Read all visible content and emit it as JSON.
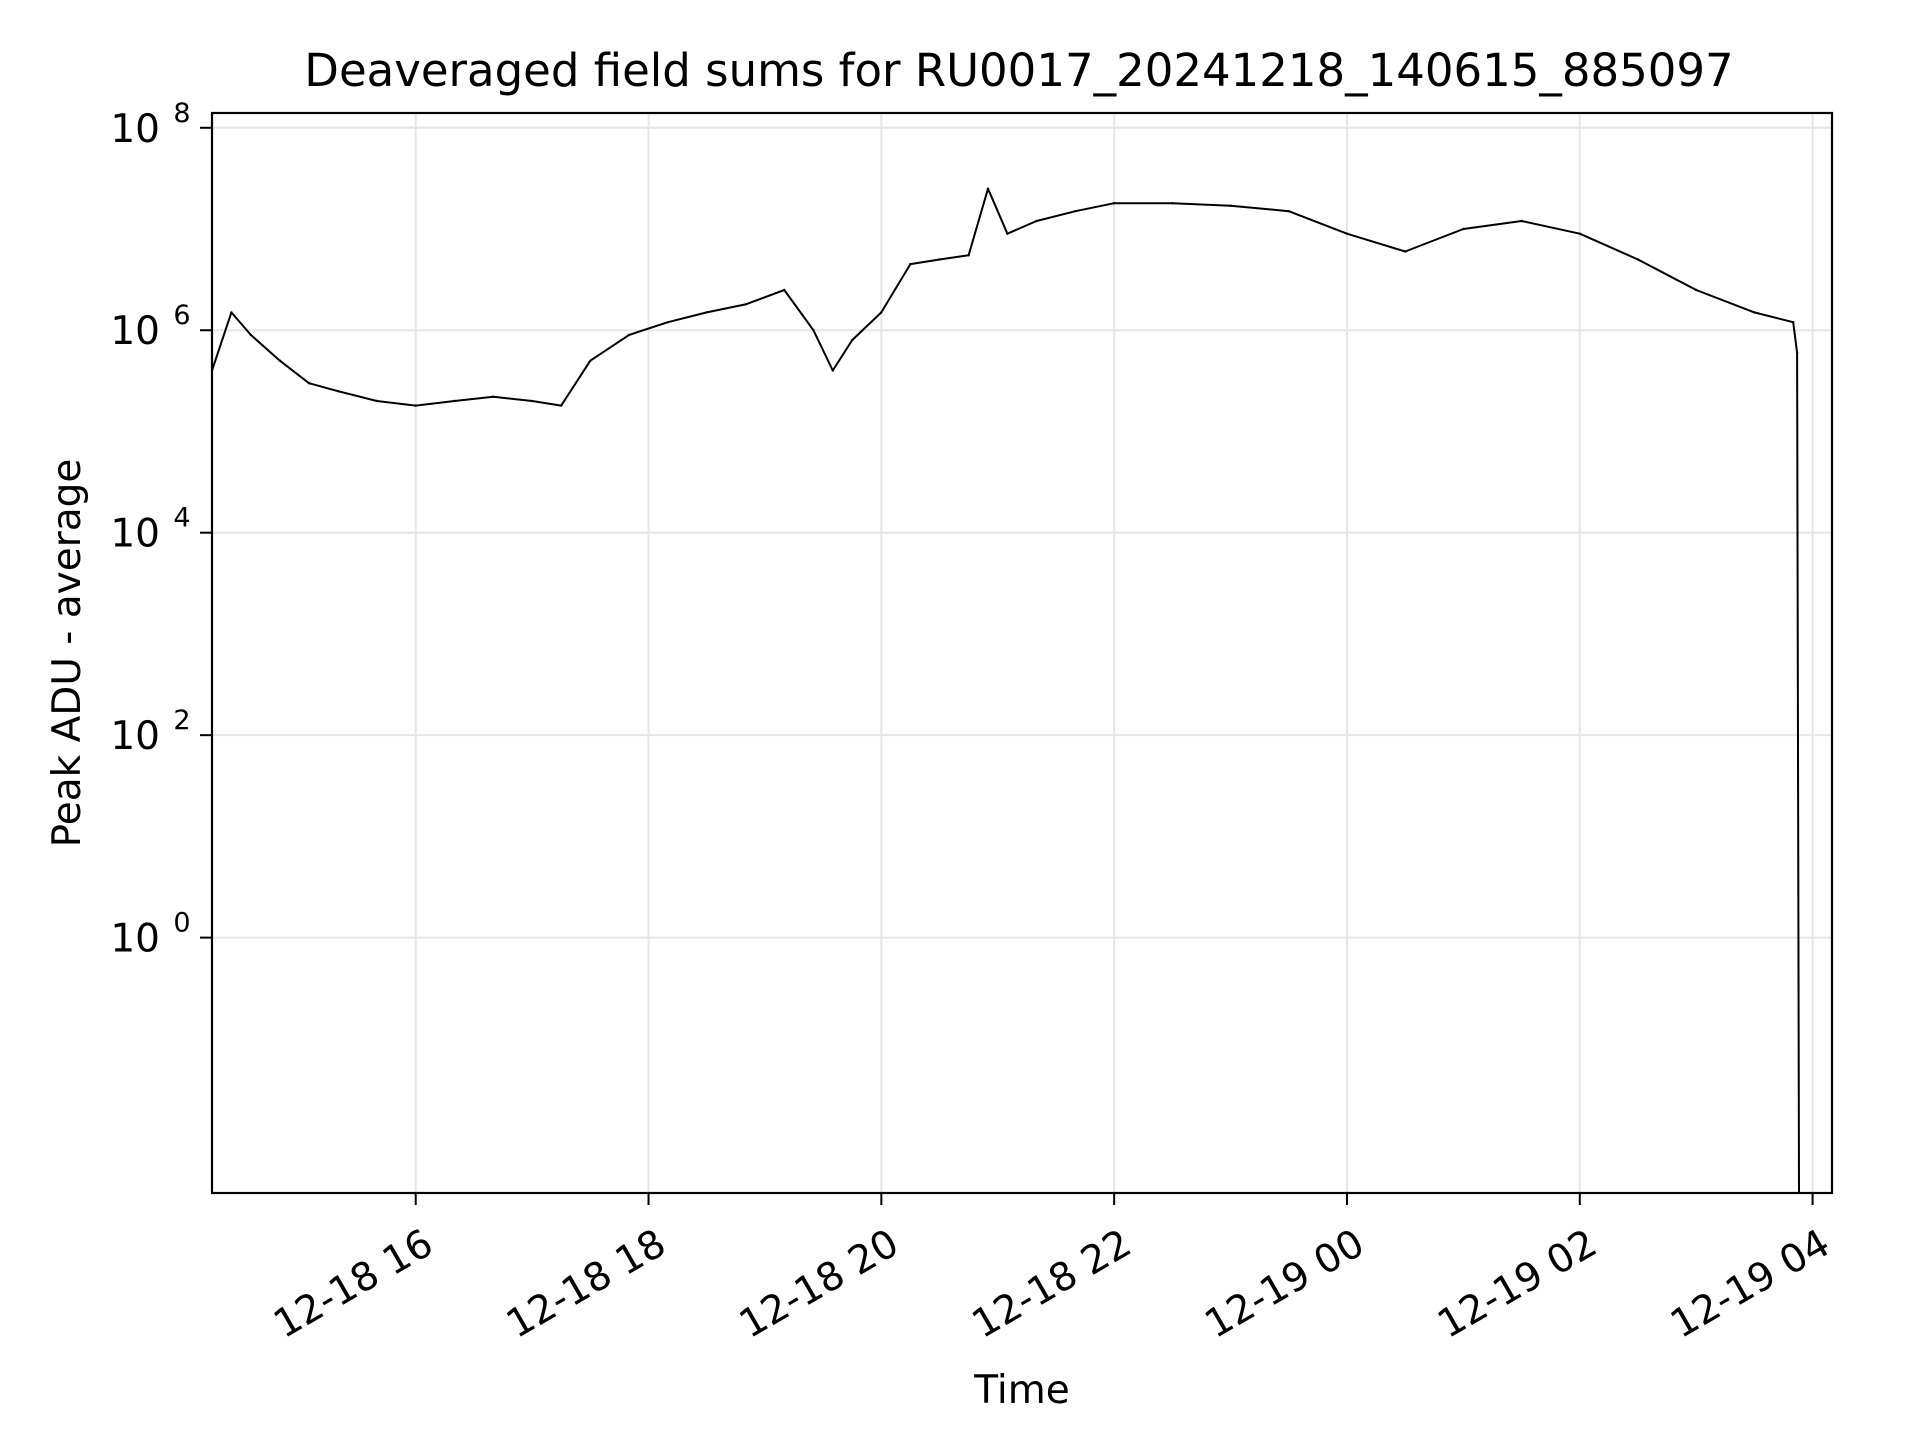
{
  "chart_data": {
    "type": "line",
    "title": "Deaveraged field sums for RU0017_20241218_140615_885097",
    "xlabel": "Time",
    "ylabel": "Peak ADU - average",
    "xlim": [
      "2024-12-18 14:15",
      "2024-12-19 04:10"
    ],
    "ylim": [
      0.003,
      140000000
    ],
    "yscale": "log",
    "grid": true,
    "x_ticks": [
      {
        "t": "2024-12-18 16:00",
        "label": "12-18 16"
      },
      {
        "t": "2024-12-18 18:00",
        "label": "12-18 18"
      },
      {
        "t": "2024-12-18 20:00",
        "label": "12-18 20"
      },
      {
        "t": "2024-12-18 22:00",
        "label": "12-18 22"
      },
      {
        "t": "2024-12-19 00:00",
        "label": "12-19 00"
      },
      {
        "t": "2024-12-19 02:00",
        "label": "12-19 02"
      },
      {
        "t": "2024-12-19 04:00",
        "label": "12-19 04"
      }
    ],
    "y_ticks": [
      {
        "v": 1,
        "base": "10",
        "exp": "0"
      },
      {
        "v": 100,
        "base": "10",
        "exp": "2"
      },
      {
        "v": 10000,
        "base": "10",
        "exp": "4"
      },
      {
        "v": 1000000,
        "base": "10",
        "exp": "6"
      },
      {
        "v": 100000000,
        "base": "10",
        "exp": "8"
      }
    ],
    "series": [
      {
        "color": "#000000",
        "points": [
          [
            "2024-12-18 14:15",
            400000
          ],
          [
            "2024-12-18 14:25",
            1500000
          ],
          [
            "2024-12-18 14:35",
            900000
          ],
          [
            "2024-12-18 14:50",
            500000
          ],
          [
            "2024-12-18 15:05",
            300000
          ],
          [
            "2024-12-18 15:20",
            250000
          ],
          [
            "2024-12-18 15:40",
            200000
          ],
          [
            "2024-12-18 16:00",
            180000
          ],
          [
            "2024-12-18 16:20",
            200000
          ],
          [
            "2024-12-18 16:40",
            220000
          ],
          [
            "2024-12-18 17:00",
            200000
          ],
          [
            "2024-12-18 17:15",
            180000
          ],
          [
            "2024-12-18 17:30",
            500000
          ],
          [
            "2024-12-18 17:50",
            900000
          ],
          [
            "2024-12-18 18:10",
            1200000
          ],
          [
            "2024-12-18 18:30",
            1500000
          ],
          [
            "2024-12-18 18:50",
            1800000
          ],
          [
            "2024-12-18 19:10",
            2500000
          ],
          [
            "2024-12-18 19:25",
            1000000
          ],
          [
            "2024-12-18 19:35",
            400000
          ],
          [
            "2024-12-18 19:45",
            800000
          ],
          [
            "2024-12-18 20:00",
            1500000
          ],
          [
            "2024-12-18 20:15",
            4500000
          ],
          [
            "2024-12-18 20:30",
            5000000
          ],
          [
            "2024-12-18 20:45",
            5500000
          ],
          [
            "2024-12-18 20:55",
            25000000
          ],
          [
            "2024-12-18 21:05",
            9000000
          ],
          [
            "2024-12-18 21:20",
            12000000
          ],
          [
            "2024-12-18 21:40",
            15000000
          ],
          [
            "2024-12-18 22:00",
            18000000
          ],
          [
            "2024-12-18 22:30",
            18000000
          ],
          [
            "2024-12-18 23:00",
            17000000
          ],
          [
            "2024-12-18 23:30",
            15000000
          ],
          [
            "2024-12-19 00:00",
            9000000
          ],
          [
            "2024-12-19 00:30",
            6000000
          ],
          [
            "2024-12-19 01:00",
            10000000
          ],
          [
            "2024-12-19 01:30",
            12000000
          ],
          [
            "2024-12-19 02:00",
            9000000
          ],
          [
            "2024-12-19 02:30",
            5000000
          ],
          [
            "2024-12-19 03:00",
            2500000
          ],
          [
            "2024-12-19 03:30",
            1500000
          ],
          [
            "2024-12-19 03:50",
            1200000
          ],
          [
            "2024-12-19 03:52",
            600000
          ],
          [
            "2024-12-19 03:53",
            0.003
          ]
        ]
      }
    ]
  }
}
